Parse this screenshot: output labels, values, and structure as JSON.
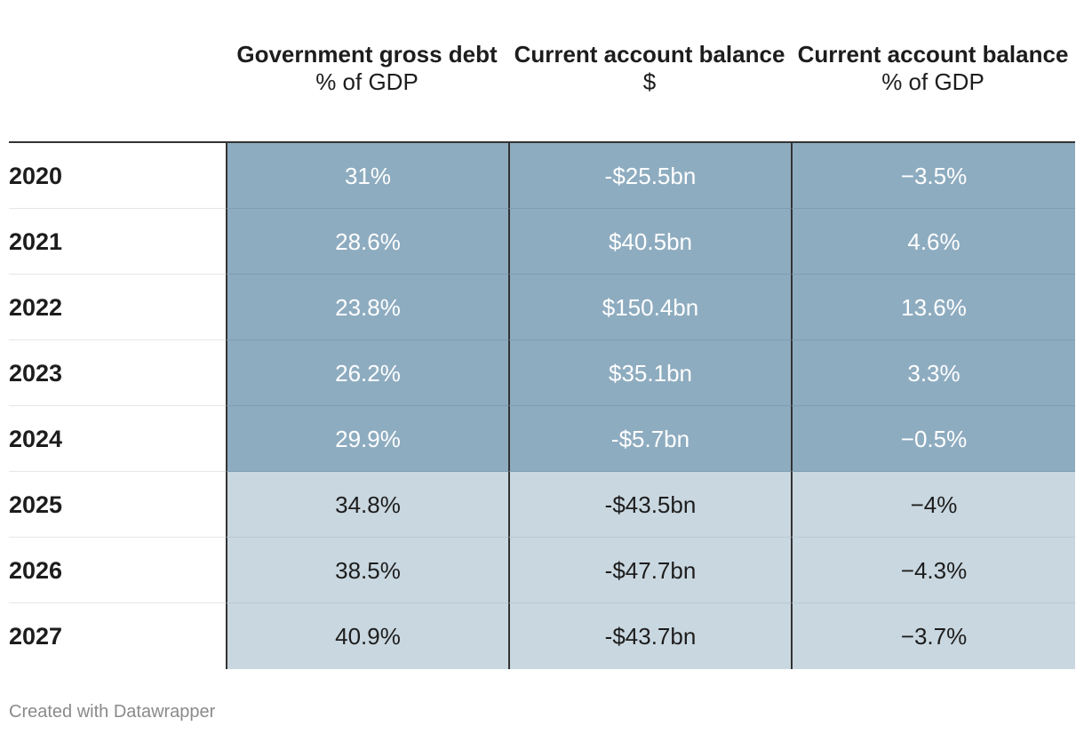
{
  "chart_data": {
    "type": "table",
    "columns": [
      {
        "title": "Government gross debt",
        "unit": "% of GDP"
      },
      {
        "title": "Current account balance",
        "unit": "$"
      },
      {
        "title": "Current account balance",
        "unit": "% of GDP"
      }
    ],
    "rows": [
      {
        "year": "2020",
        "values": [
          "31%",
          "-$25.5bn",
          "−3.5%"
        ],
        "shade": "dark"
      },
      {
        "year": "2021",
        "values": [
          "28.6%",
          "$40.5bn",
          "4.6%"
        ],
        "shade": "dark"
      },
      {
        "year": "2022",
        "values": [
          "23.8%",
          "$150.4bn",
          "13.6%"
        ],
        "shade": "dark"
      },
      {
        "year": "2023",
        "values": [
          "26.2%",
          "$35.1bn",
          "3.3%"
        ],
        "shade": "dark"
      },
      {
        "year": "2024",
        "values": [
          "29.9%",
          "-$5.7bn",
          "−0.5%"
        ],
        "shade": "dark"
      },
      {
        "year": "2025",
        "values": [
          "34.8%",
          "-$43.5bn",
          "−4%"
        ],
        "shade": "light"
      },
      {
        "year": "2026",
        "values": [
          "38.5%",
          "-$47.7bn",
          "−4.3%"
        ],
        "shade": "light"
      },
      {
        "year": "2027",
        "values": [
          "40.9%",
          "-$43.7bn",
          "−3.7%"
        ],
        "shade": "light"
      }
    ],
    "colors": {
      "dark": "#8eacc0",
      "light": "#c9d7e0"
    }
  },
  "footer": {
    "credit": "Created with Datawrapper"
  }
}
